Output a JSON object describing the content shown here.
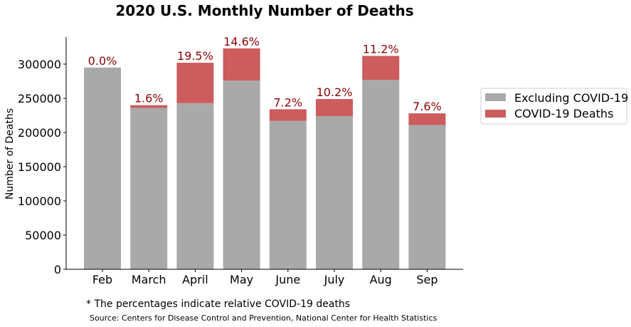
{
  "chart_data": {
    "type": "bar",
    "stacked": true,
    "title": "2020 U.S. Monthly Number of Deaths",
    "xlabel": "",
    "ylabel": "Number of Deaths",
    "ylim": [
      0,
      340000
    ],
    "yticks": [
      "0",
      "50000",
      "100000",
      "150000",
      "200000",
      "250000",
      "300000"
    ],
    "ytick_values": [
      0,
      50000,
      100000,
      150000,
      200000,
      250000,
      300000
    ],
    "categories": [
      "Feb",
      "March",
      "April",
      "May",
      "June",
      "July",
      "Aug",
      "Sep"
    ],
    "series": [
      {
        "name": "Excluding COVID-19",
        "color": "#a9a9a9",
        "values": [
          295000,
          236000,
          243000,
          276000,
          217000,
          224000,
          277000,
          211000
        ]
      },
      {
        "name": "COVID-19 Deaths",
        "color": "#cd5c5c",
        "values": [
          0,
          4000,
          59000,
          47000,
          17000,
          25000,
          35000,
          17000
        ]
      }
    ],
    "annotations": [
      "0.0%",
      "1.6%",
      "19.5%",
      "14.6%",
      "7.2%",
      "10.2%",
      "11.2%",
      "7.6%"
    ],
    "annotation_color": "#8b0000",
    "grid": false,
    "legend_position": "right"
  },
  "footnote": "* The percentages indicate relative COVID-19 deaths",
  "source": "Source: Centers for Disease Control and Prevention, National Center for Health Statistics"
}
